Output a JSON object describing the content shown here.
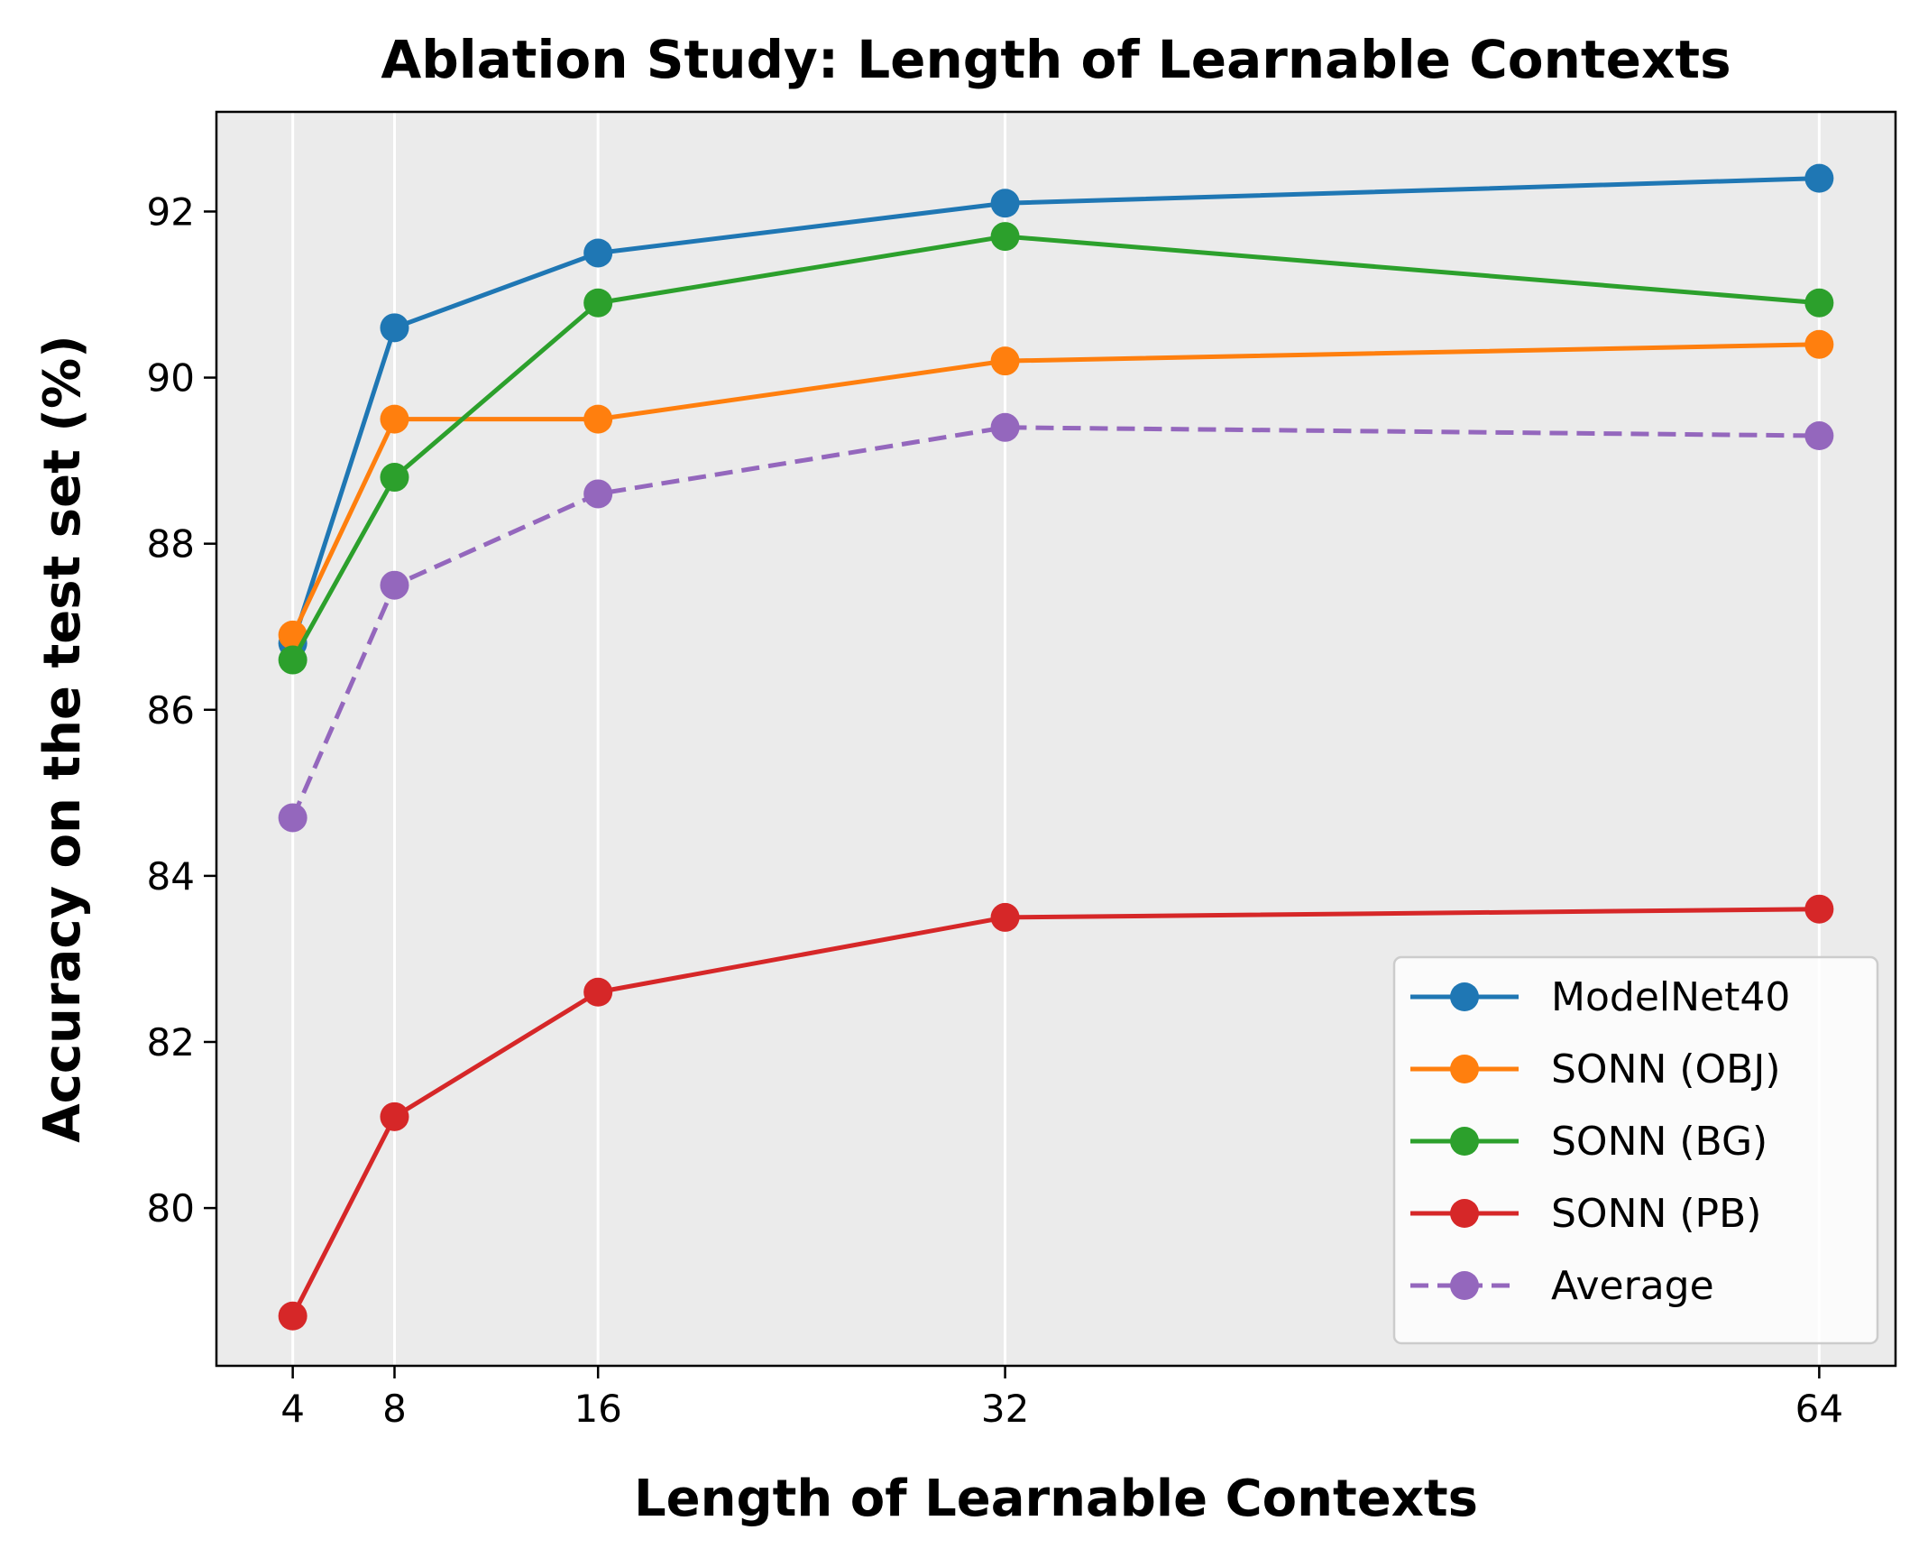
{
  "chart_data": {
    "type": "line",
    "title": "Ablation Study: Length of Learnable Contexts",
    "xlabel": "Length of Learnable Contexts",
    "ylabel": "Accuracy on the test set (%)",
    "x": [
      4,
      8,
      16,
      32,
      64
    ],
    "x_ticks": [
      "4",
      "8",
      "16",
      "32",
      "64"
    ],
    "y_ticks": [
      "80",
      "82",
      "84",
      "86",
      "88",
      "90",
      "92"
    ],
    "xlim": [
      1,
      67
    ],
    "ylim": [
      78.1,
      93.2
    ],
    "grid": "vertical",
    "background": "#ebebeb",
    "legend_position": "lower right",
    "series": [
      {
        "name": "ModelNet40",
        "color": "#1f77b4",
        "dash": false,
        "values": [
          86.8,
          90.6,
          91.5,
          92.1,
          92.4
        ]
      },
      {
        "name": "SONN (OBJ)",
        "color": "#ff7f0e",
        "dash": false,
        "values": [
          86.9,
          89.5,
          89.5,
          90.2,
          90.4
        ]
      },
      {
        "name": "SONN (BG)",
        "color": "#2ca02c",
        "dash": false,
        "values": [
          86.6,
          88.8,
          90.9,
          91.7,
          90.9
        ]
      },
      {
        "name": "SONN (PB)",
        "color": "#d62728",
        "dash": false,
        "values": [
          78.7,
          81.1,
          82.6,
          83.5,
          83.6
        ]
      },
      {
        "name": "Average",
        "color": "#9467bd",
        "dash": true,
        "values": [
          84.7,
          87.5,
          88.6,
          89.4,
          89.3
        ]
      }
    ]
  }
}
